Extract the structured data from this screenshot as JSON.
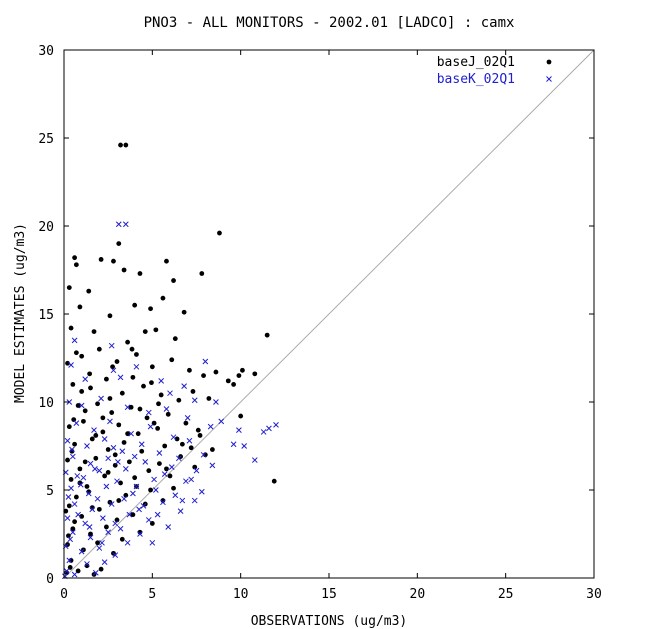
{
  "chart_data": {
    "type": "scatter",
    "title": "PNO3 - ALL MONITORS - 2002.01 [LADCO] : camx",
    "xlabel": "OBSERVATIONS (ug/m3)",
    "ylabel": "MODEL ESTIMATES (ug/m3)",
    "xlim": [
      0,
      30
    ],
    "ylim": [
      0,
      30
    ],
    "xticks": [
      "0",
      "5",
      "10",
      "15",
      "20",
      "25",
      "30"
    ],
    "yticks": [
      "0",
      "5",
      "10",
      "15",
      "20",
      "25",
      "30"
    ],
    "one_to_one_line": true,
    "grid": false,
    "legend_position": "top-right",
    "series": [
      {
        "name": "baseJ_02Q1",
        "marker": "dot",
        "color": "#000000",
        "points": [
          [
            3.2,
            24.6
          ],
          [
            3.5,
            24.6
          ],
          [
            0.6,
            18.2
          ],
          [
            0.7,
            17.8
          ],
          [
            0.3,
            16.5
          ],
          [
            1.4,
            16.3
          ],
          [
            2.1,
            18.1
          ],
          [
            2.8,
            18.0
          ],
          [
            3.1,
            19.0
          ],
          [
            3.4,
            17.5
          ],
          [
            4.3,
            17.3
          ],
          [
            5.8,
            18.0
          ],
          [
            6.2,
            16.9
          ],
          [
            7.8,
            17.3
          ],
          [
            8.8,
            19.6
          ],
          [
            0.4,
            14.2
          ],
          [
            0.9,
            15.4
          ],
          [
            1.7,
            14.0
          ],
          [
            2.6,
            14.9
          ],
          [
            4.0,
            15.5
          ],
          [
            4.9,
            15.3
          ],
          [
            5.6,
            15.9
          ],
          [
            6.8,
            15.1
          ],
          [
            3.6,
            13.4
          ],
          [
            4.6,
            14.0
          ],
          [
            5.2,
            14.1
          ],
          [
            6.3,
            13.6
          ],
          [
            11.5,
            13.8
          ],
          [
            0.2,
            12.2
          ],
          [
            1.0,
            12.6
          ],
          [
            2.0,
            13.0
          ],
          [
            3.0,
            12.3
          ],
          [
            4.1,
            12.7
          ],
          [
            5.0,
            12.0
          ],
          [
            6.1,
            12.4
          ],
          [
            7.1,
            11.8
          ],
          [
            7.9,
            11.5
          ],
          [
            8.6,
            11.7
          ],
          [
            9.3,
            11.2
          ],
          [
            9.9,
            11.5
          ],
          [
            10.1,
            11.8
          ],
          [
            10.8,
            11.6
          ],
          [
            0.5,
            11.0
          ],
          [
            1.5,
            10.8
          ],
          [
            2.4,
            11.3
          ],
          [
            3.3,
            10.5
          ],
          [
            4.5,
            10.9
          ],
          [
            5.5,
            10.4
          ],
          [
            6.5,
            10.1
          ],
          [
            7.3,
            10.6
          ],
          [
            8.2,
            10.2
          ],
          [
            9.6,
            11.0
          ],
          [
            10.0,
            9.2
          ],
          [
            11.9,
            5.5
          ],
          [
            0.8,
            9.8
          ],
          [
            1.2,
            9.5
          ],
          [
            1.9,
            9.9
          ],
          [
            2.7,
            9.4
          ],
          [
            3.8,
            9.7
          ],
          [
            4.7,
            9.1
          ],
          [
            5.9,
            9.3
          ],
          [
            6.9,
            8.8
          ],
          [
            7.6,
            8.4
          ],
          [
            0.3,
            8.6
          ],
          [
            1.1,
            8.9
          ],
          [
            2.2,
            8.3
          ],
          [
            3.1,
            8.7
          ],
          [
            4.2,
            8.2
          ],
          [
            5.3,
            8.5
          ],
          [
            6.4,
            7.9
          ],
          [
            7.2,
            7.4
          ],
          [
            8.0,
            7.0
          ],
          [
            0.6,
            7.6
          ],
          [
            1.6,
            7.9
          ],
          [
            2.5,
            7.3
          ],
          [
            3.4,
            7.7
          ],
          [
            4.4,
            7.2
          ],
          [
            5.7,
            7.5
          ],
          [
            6.6,
            6.9
          ],
          [
            0.2,
            6.7
          ],
          [
            0.9,
            6.2
          ],
          [
            1.8,
            6.8
          ],
          [
            2.9,
            6.4
          ],
          [
            3.7,
            6.6
          ],
          [
            4.8,
            6.1
          ],
          [
            5.4,
            6.5
          ],
          [
            6.0,
            5.8
          ],
          [
            7.4,
            6.3
          ],
          [
            0.4,
            5.6
          ],
          [
            1.3,
            5.2
          ],
          [
            2.3,
            5.8
          ],
          [
            3.2,
            5.4
          ],
          [
            4.0,
            5.7
          ],
          [
            4.9,
            5.0
          ],
          [
            6.2,
            5.1
          ],
          [
            0.7,
            4.6
          ],
          [
            1.4,
            4.9
          ],
          [
            2.6,
            4.3
          ],
          [
            3.5,
            4.7
          ],
          [
            4.6,
            4.2
          ],
          [
            5.6,
            4.4
          ],
          [
            0.1,
            3.8
          ],
          [
            1.0,
            3.5
          ],
          [
            2.0,
            3.9
          ],
          [
            3.0,
            3.3
          ],
          [
            3.9,
            3.6
          ],
          [
            5.0,
            3.1
          ],
          [
            0.5,
            2.8
          ],
          [
            1.5,
            2.5
          ],
          [
            2.4,
            2.9
          ],
          [
            3.3,
            2.2
          ],
          [
            4.3,
            2.6
          ],
          [
            0.2,
            1.9
          ],
          [
            1.1,
            1.6
          ],
          [
            1.9,
            2.0
          ],
          [
            2.8,
            1.4
          ],
          [
            0.4,
            1.0
          ],
          [
            1.3,
            0.7
          ],
          [
            2.1,
            0.5
          ],
          [
            0.15,
            0.3
          ],
          [
            0.35,
            0.6
          ],
          [
            0.8,
            0.4
          ],
          [
            1.7,
            0.2
          ],
          [
            0.25,
            2.4
          ],
          [
            0.6,
            3.2
          ],
          [
            0.3,
            4.1
          ],
          [
            0.9,
            5.4
          ],
          [
            1.2,
            6.6
          ],
          [
            0.45,
            7.2
          ],
          [
            1.8,
            8.1
          ],
          [
            2.2,
            9.1
          ],
          [
            2.6,
            10.2
          ],
          [
            1.0,
            10.6
          ],
          [
            0.7,
            12.8
          ],
          [
            3.9,
            11.4
          ],
          [
            4.3,
            9.6
          ],
          [
            5.1,
            8.8
          ],
          [
            3.6,
            8.2
          ],
          [
            2.9,
            7.0
          ],
          [
            1.6,
            4.0
          ],
          [
            2.5,
            6.0
          ],
          [
            3.1,
            4.4
          ],
          [
            4.1,
            5.2
          ],
          [
            5.8,
            6.2
          ],
          [
            6.7,
            7.6
          ],
          [
            7.7,
            8.1
          ],
          [
            8.4,
            7.3
          ],
          [
            0.55,
            9.0
          ],
          [
            1.45,
            11.6
          ],
          [
            2.75,
            12.0
          ],
          [
            3.85,
            13.0
          ],
          [
            4.95,
            11.1
          ],
          [
            5.35,
            9.9
          ]
        ]
      },
      {
        "name": "baseK_02Q1",
        "marker": "x",
        "color": "#1f1fd0",
        "points": [
          [
            3.1,
            20.1
          ],
          [
            3.5,
            20.1
          ],
          [
            0.6,
            13.5
          ],
          [
            2.7,
            13.2
          ],
          [
            2.8,
            11.8
          ],
          [
            3.2,
            11.4
          ],
          [
            4.1,
            12.0
          ],
          [
            8.0,
            12.3
          ],
          [
            0.4,
            12.1
          ],
          [
            1.2,
            11.3
          ],
          [
            5.5,
            11.2
          ],
          [
            6.0,
            10.5
          ],
          [
            6.8,
            10.9
          ],
          [
            7.4,
            10.1
          ],
          [
            8.6,
            10.0
          ],
          [
            0.3,
            10.0
          ],
          [
            1.0,
            9.8
          ],
          [
            2.1,
            10.2
          ],
          [
            3.6,
            9.7
          ],
          [
            4.8,
            9.4
          ],
          [
            5.8,
            9.6
          ],
          [
            7.0,
            9.1
          ],
          [
            8.3,
            8.6
          ],
          [
            8.9,
            8.9
          ],
          [
            9.6,
            7.6
          ],
          [
            9.9,
            8.4
          ],
          [
            10.2,
            7.5
          ],
          [
            11.6,
            8.5
          ],
          [
            12.0,
            8.7
          ],
          [
            10.8,
            6.7
          ],
          [
            11.3,
            8.3
          ],
          [
            0.7,
            8.8
          ],
          [
            1.7,
            8.4
          ],
          [
            2.6,
            8.9
          ],
          [
            3.8,
            8.2
          ],
          [
            4.9,
            8.6
          ],
          [
            6.2,
            8.0
          ],
          [
            7.1,
            7.8
          ],
          [
            7.9,
            7.0
          ],
          [
            8.4,
            6.4
          ],
          [
            0.2,
            7.8
          ],
          [
            1.3,
            7.5
          ],
          [
            2.3,
            7.9
          ],
          [
            3.3,
            7.2
          ],
          [
            4.4,
            7.6
          ],
          [
            5.4,
            7.1
          ],
          [
            6.5,
            6.8
          ],
          [
            7.5,
            6.1
          ],
          [
            0.5,
            6.9
          ],
          [
            1.5,
            6.5
          ],
          [
            2.5,
            6.8
          ],
          [
            3.5,
            6.2
          ],
          [
            4.6,
            6.6
          ],
          [
            5.7,
            5.9
          ],
          [
            6.9,
            5.5
          ],
          [
            7.8,
            4.9
          ],
          [
            0.1,
            6.0
          ],
          [
            1.1,
            5.7
          ],
          [
            2.0,
            6.1
          ],
          [
            3.0,
            5.5
          ],
          [
            4.1,
            5.2
          ],
          [
            5.1,
            5.6
          ],
          [
            6.3,
            4.7
          ],
          [
            7.4,
            4.4
          ],
          [
            0.4,
            5.1
          ],
          [
            1.4,
            4.8
          ],
          [
            2.4,
            5.2
          ],
          [
            3.4,
            4.5
          ],
          [
            4.5,
            4.1
          ],
          [
            5.6,
            4.3
          ],
          [
            6.6,
            3.8
          ],
          [
            0.6,
            4.2
          ],
          [
            1.6,
            3.9
          ],
          [
            2.7,
            4.2
          ],
          [
            3.7,
            3.6
          ],
          [
            4.8,
            3.3
          ],
          [
            5.9,
            2.9
          ],
          [
            0.2,
            3.4
          ],
          [
            1.2,
            3.1
          ],
          [
            2.2,
            3.4
          ],
          [
            3.2,
            2.8
          ],
          [
            4.3,
            2.5
          ],
          [
            5.0,
            2.0
          ],
          [
            0.5,
            2.6
          ],
          [
            1.5,
            2.3
          ],
          [
            2.5,
            2.6
          ],
          [
            3.6,
            2.0
          ],
          [
            0.1,
            1.8
          ],
          [
            1.0,
            1.5
          ],
          [
            2.0,
            1.7
          ],
          [
            2.9,
            1.3
          ],
          [
            0.3,
            1.0
          ],
          [
            1.3,
            0.8
          ],
          [
            2.3,
            0.9
          ],
          [
            0.15,
            0.4
          ],
          [
            0.6,
            0.2
          ],
          [
            1.8,
            0.3
          ],
          [
            0.05,
            0.1
          ],
          [
            0.35,
            2.2
          ],
          [
            0.8,
            3.6
          ],
          [
            0.25,
            4.6
          ],
          [
            0.95,
            5.3
          ],
          [
            1.75,
            6.2
          ],
          [
            0.45,
            7.3
          ],
          [
            2.8,
            7.4
          ],
          [
            3.9,
            4.8
          ],
          [
            5.3,
            3.6
          ],
          [
            6.1,
            6.3
          ],
          [
            6.7,
            4.4
          ],
          [
            7.2,
            5.6
          ],
          [
            1.9,
            4.5
          ],
          [
            2.9,
            3.1
          ],
          [
            4.0,
            6.9
          ],
          [
            5.2,
            5.0
          ],
          [
            0.75,
            5.8
          ],
          [
            1.45,
            2.9
          ],
          [
            2.15,
            2.0
          ],
          [
            3.05,
            6.6
          ],
          [
            4.25,
            3.9
          ]
        ]
      }
    ]
  }
}
